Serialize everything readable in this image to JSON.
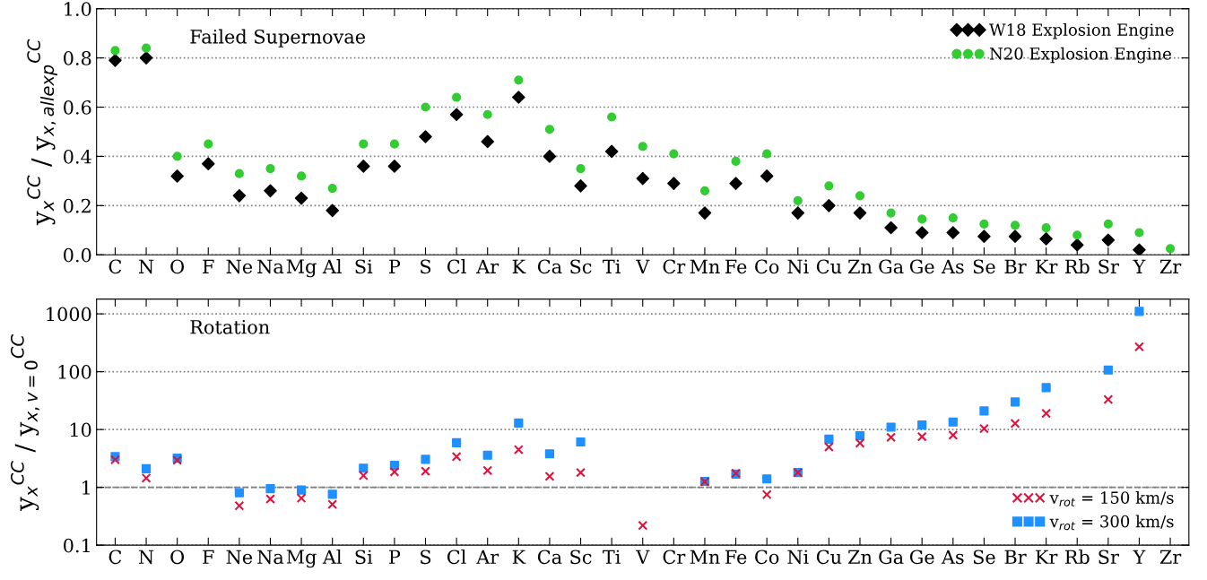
{
  "chart_data": [
    {
      "type": "scatter",
      "title": "Failed Supernovae",
      "ylabel": "y$_{x}$$^{CC}$ / y$_{x,allexp}$$^{CC}$",
      "categories": [
        "C",
        "N",
        "O",
        "F",
        "Ne",
        "Na",
        "Mg",
        "Al",
        "Si",
        "P",
        "S",
        "Cl",
        "Ar",
        "K",
        "Ca",
        "Sc",
        "Ti",
        "V",
        "Cr",
        "Mn",
        "Fe",
        "Co",
        "Ni",
        "Cu",
        "Zn",
        "Ga",
        "Ge",
        "As",
        "Se",
        "Br",
        "Kr",
        "Rb",
        "Sr",
        "Y",
        "Zr"
      ],
      "ylim": [
        0,
        1
      ],
      "yticks": [
        {
          "value": 0,
          "label": "0.0"
        },
        0.2,
        0.4,
        0.6,
        0.8,
        {
          "value": 1,
          "label": "1.0"
        }
      ],
      "grid": "y",
      "legend": "top right",
      "series": [
        {
          "name": "W18 Explosion Engine",
          "color": "#000000",
          "marker": "diamond",
          "values": [
            0.79,
            0.8,
            0.32,
            0.37,
            0.24,
            0.26,
            0.23,
            0.18,
            0.36,
            0.36,
            0.48,
            0.57,
            0.46,
            0.64,
            0.4,
            0.28,
            0.42,
            0.31,
            0.29,
            0.17,
            0.29,
            0.32,
            0.17,
            0.2,
            0.17,
            0.11,
            0.09,
            0.09,
            0.075,
            0.075,
            0.065,
            0.04,
            0.06,
            0.02,
            null
          ]
        },
        {
          "name": "N20 Explosion Engine",
          "color": "#33cc33",
          "marker": "circle",
          "values": [
            0.83,
            0.84,
            0.4,
            0.45,
            0.33,
            0.35,
            0.32,
            0.27,
            0.45,
            0.45,
            0.6,
            0.64,
            0.57,
            0.71,
            0.51,
            0.35,
            0.56,
            0.44,
            0.41,
            0.26,
            0.38,
            0.41,
            0.22,
            0.28,
            0.24,
            0.17,
            0.145,
            0.15,
            0.125,
            0.12,
            0.11,
            0.08,
            0.125,
            0.09,
            0.025
          ]
        }
      ]
    },
    {
      "type": "scatter",
      "title": "Rotation",
      "ylabel": "y$_{x}$$^{CC}$ / y$_{x,v=0}$$^{CC}$",
      "categories": [
        "C",
        "N",
        "O",
        "F",
        "Ne",
        "Na",
        "Mg",
        "Al",
        "Si",
        "P",
        "S",
        "Cl",
        "Ar",
        "K",
        "Ca",
        "Sc",
        "Ti",
        "V",
        "Cr",
        "Mn",
        "Fe",
        "Co",
        "Ni",
        "Cu",
        "Zn",
        "Ga",
        "Ge",
        "As",
        "Se",
        "Br",
        "Kr",
        "Rb",
        "Sr",
        "Y",
        "Zr"
      ],
      "log": "y",
      "ylim": [
        0.1,
        1800
      ],
      "yticks": [
        0.1,
        1,
        10,
        100,
        1000
      ],
      "grid": "y",
      "legend": "bottom right",
      "ref_lines": [
        {
          "axis": "y",
          "value": 1,
          "color": "#808080",
          "line_style": "dashed"
        }
      ],
      "series": [
        {
          "name": "v$_{rot}$ = 150 km/s",
          "color": "#dc143c",
          "marker": "cross",
          "values": [
            3.0,
            1.45,
            2.95,
            null,
            0.48,
            0.63,
            0.65,
            0.51,
            1.6,
            1.85,
            1.9,
            3.4,
            1.95,
            4.5,
            1.55,
            1.8,
            null,
            0.22,
            null,
            1.25,
            1.75,
            0.75,
            1.8,
            5,
            5.8,
            7.3,
            7.5,
            8,
            10.4,
            12.7,
            19,
            null,
            33,
            270,
            null
          ]
        },
        {
          "name": "v$_{rot}$ = 300 km/s",
          "color": "#1e90ff",
          "marker": "square",
          "values": [
            3.4,
            2.1,
            3.2,
            null,
            0.81,
            0.95,
            0.9,
            0.76,
            2.15,
            2.4,
            3.05,
            5.9,
            3.6,
            13,
            3.8,
            6.1,
            null,
            null,
            null,
            1.27,
            1.7,
            1.4,
            1.8,
            6.8,
            7.8,
            11,
            12,
            13.5,
            21,
            30,
            53,
            null,
            107,
            1100,
            null
          ]
        }
      ]
    }
  ]
}
